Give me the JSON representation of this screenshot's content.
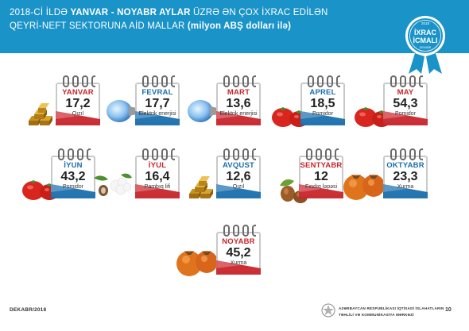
{
  "header": {
    "line1_prefix": "2018-Cİ İLDƏ ",
    "line1_bold": "YANVAR - NOYABR AYLAR",
    "line1_suffix": " ÜZRƏ ƏN ÇOX İXRAC EDİLƏN",
    "line2_prefix": "QEYRİ-NEFT SEKTORUNA AİD MALLAR ",
    "line2_bold": "(milyon ABŞ dolları ilə)"
  },
  "badge": {
    "year": "2018",
    "line1": "İXRAC",
    "line2": "İCMALI",
    "sub": "DEKABR",
    "color": "#1a93c9"
  },
  "months": [
    {
      "month": "YANVAR",
      "value": "17,2",
      "product": "Qızıl",
      "theme": "red",
      "icon": "gold-bars-icon"
    },
    {
      "month": "FEVRAL",
      "value": "17,7",
      "product": "Elektrik enerjisi",
      "theme": "blue",
      "icon": "light-bulb-icon"
    },
    {
      "month": "MART",
      "value": "13,6",
      "product": "Elektrik enerjisi",
      "theme": "red",
      "icon": "light-bulb-icon"
    },
    {
      "month": "APREL",
      "value": "18,5",
      "product": "Pomidor",
      "theme": "blue",
      "icon": "tomato-icon"
    },
    {
      "month": "MAY",
      "value": "54,3",
      "product": "Pomidor",
      "theme": "red",
      "icon": "tomato-icon"
    },
    {
      "month": "İYUN",
      "value": "43,2",
      "product": "Pomidor",
      "theme": "blue",
      "icon": "tomato-icon"
    },
    {
      "month": "İYUL",
      "value": "16,4",
      "product": "Pambıq lifi",
      "theme": "red",
      "icon": "cotton-icon"
    },
    {
      "month": "AVQUST",
      "value": "12,6",
      "product": "Qızıl",
      "theme": "blue",
      "icon": "gold-bars-icon"
    },
    {
      "month": "SENTYABR",
      "value": "12",
      "product": "Fındıq ləpəsi",
      "theme": "red",
      "icon": "hazelnut-icon"
    },
    {
      "month": "OKTYABR",
      "value": "23,3",
      "product": "Xurma",
      "theme": "blue",
      "icon": "persimmon-icon"
    },
    {
      "month": "NOYABR",
      "value": "45,2",
      "product": "Xurma",
      "theme": "red",
      "icon": "persimmon-icon"
    }
  ],
  "footer": {
    "left": "DEKABR/2018",
    "org_line1": "AZƏRBAYCAN RESPUBLİKASI İQTİSADİ İSLAHATLARIN",
    "org_line2": "TƏHLİLİ VƏ KOMMUNİKASİYA MƏRKƏZİ",
    "page": "10"
  }
}
